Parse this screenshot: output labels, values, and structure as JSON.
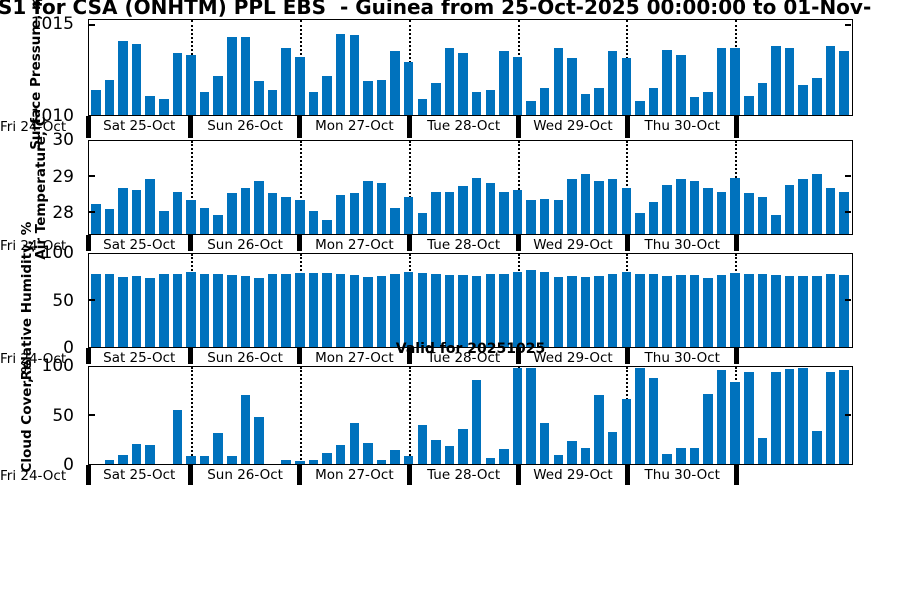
{
  "title": "S1 for CSA (ONHTM) PPL EBS  - Guinea from 25-Oct-2025 00:00:00 to 01-Nov-",
  "annotations": {
    "valid_for": "Valid for 20251025"
  },
  "colors": {
    "bar": "#0072BD",
    "axis": "#000000",
    "background": "#ffffff"
  },
  "x_axis": {
    "edge_label": "Fri 24-Oct",
    "day_labels": [
      "Sat 25-Oct",
      "Sun 26-Oct",
      "Mon 27-Oct",
      "Tue 28-Oct",
      "Wed 29-Oct",
      "Thu 30-Oct",
      ""
    ],
    "slots": 56,
    "midnight_slot_centers": [
      7,
      15,
      23,
      31,
      39,
      47
    ]
  },
  "chart_data": [
    {
      "type": "bar",
      "ylabel": "Surface Pressure, mb",
      "ylim": [
        1010,
        1015.3
      ],
      "yticks": [
        1010,
        1015
      ],
      "grid": "vertical-dotted",
      "values": [
        1011.4,
        1012.0,
        1014.2,
        1014.0,
        1011.1,
        1010.9,
        1013.5,
        1013.4,
        1011.3,
        1012.2,
        1014.4,
        1014.4,
        1011.9,
        1011.4,
        1013.8,
        1013.3,
        1011.3,
        1012.2,
        1014.6,
        1014.5,
        1011.9,
        1012.0,
        1013.6,
        1013.0,
        1010.9,
        1011.8,
        1013.8,
        1013.5,
        1011.3,
        1011.4,
        1013.6,
        1013.3,
        1010.8,
        1011.5,
        1013.8,
        1013.2,
        1011.2,
        1011.5,
        1013.6,
        1013.2,
        1010.8,
        1011.5,
        1013.7,
        1013.4,
        1011.0,
        1011.3,
        1013.8,
        1013.8,
        1011.1,
        1011.8,
        1013.9,
        1013.8,
        1011.7,
        1012.1,
        1013.9,
        1013.6
      ]
    },
    {
      "type": "bar",
      "ylabel": "Air Temperature, C",
      "ylim": [
        27.4,
        30
      ],
      "yticks": [
        28,
        29,
        30
      ],
      "grid": "vertical-dotted",
      "values": [
        28.25,
        28.1,
        28.7,
        28.65,
        28.95,
        28.05,
        28.6,
        28.35,
        28.15,
        27.95,
        28.55,
        28.7,
        28.9,
        28.55,
        28.45,
        28.35,
        28.05,
        27.8,
        28.5,
        28.55,
        28.9,
        28.85,
        28.15,
        28.45,
        28.0,
        28.6,
        28.6,
        28.75,
        29.0,
        28.85,
        28.6,
        28.65,
        28.35,
        28.4,
        28.35,
        28.95,
        29.1,
        28.9,
        28.95,
        28.7,
        28.0,
        28.3,
        28.8,
        28.95,
        28.9,
        28.7,
        28.6,
        29.0,
        28.55,
        28.45,
        27.95,
        28.8,
        28.95,
        29.1,
        28.7,
        28.6
      ]
    },
    {
      "type": "bar",
      "ylabel": "Relative Humidity, %",
      "ylim": [
        0,
        100
      ],
      "yticks": [
        0,
        50,
        100
      ],
      "grid": "vertical-dotted",
      "values": [
        80,
        79,
        76,
        77,
        75,
        80,
        80,
        82,
        80,
        80,
        78,
        77,
        75,
        79,
        80,
        81,
        81,
        81,
        79,
        78,
        76,
        77,
        79,
        82,
        81,
        80,
        78,
        78,
        77,
        80,
        80,
        82,
        84,
        82,
        76,
        77,
        76,
        77,
        80,
        82,
        79,
        79,
        77,
        78,
        78,
        75,
        78,
        81,
        80,
        79,
        78,
        77,
        77,
        77,
        80,
        78
      ]
    },
    {
      "type": "bar",
      "ylabel": "Cloud Cover, %",
      "ylim": [
        0,
        100
      ],
      "yticks": [
        0,
        50,
        100
      ],
      "grid": "vertical-dotted",
      "values": [
        0,
        4,
        9,
        21,
        20,
        0,
        56,
        8,
        8,
        32,
        8,
        72,
        49,
        0,
        4,
        3,
        4,
        12,
        20,
        43,
        22,
        4,
        15,
        8,
        41,
        25,
        19,
        37,
        88,
        6,
        16,
        100,
        100,
        43,
        9,
        24,
        17,
        72,
        33,
        68,
        100,
        90,
        10,
        17,
        17,
        73,
        98,
        86,
        96,
        27,
        96,
        99,
        100,
        34,
        96,
        98
      ]
    }
  ]
}
